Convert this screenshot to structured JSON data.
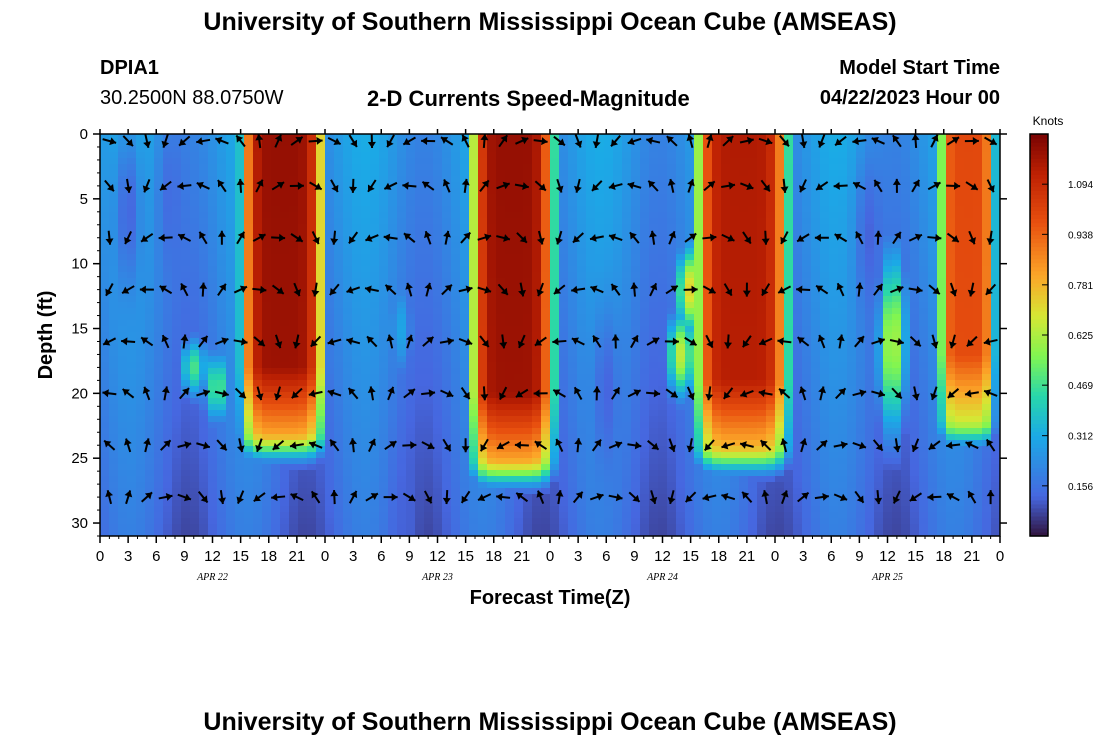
{
  "header": {
    "title": "University of Southern Mississippi Ocean Cube (AMSEAS)",
    "station_id": "DPIA1",
    "station_coords": "30.2500N  88.0750W",
    "plot_subtitle": "2-D Currents Speed-Magnitude",
    "model_start_label": "Model Start Time",
    "model_start_value": "04/22/2023 Hour 00"
  },
  "footer": {
    "title": "University of Southern Mississippi Ocean Cube (AMSEAS)"
  },
  "chart_data": {
    "type": "heatmap",
    "title": "2-D Currents Speed-Magnitude",
    "xlabel": "Forecast Time(Z)",
    "ylabel": "Depth (ft)",
    "x_tick_labels": [
      "0",
      "3",
      "6",
      "9",
      "12",
      "15",
      "18",
      "21",
      "0",
      "3",
      "6",
      "9",
      "12",
      "15",
      "18",
      "21",
      "0",
      "3",
      "6",
      "9",
      "12",
      "15",
      "18",
      "21",
      "0",
      "3",
      "6",
      "9",
      "12",
      "15",
      "18",
      "21",
      "0"
    ],
    "x_range_hours": [
      0,
      96
    ],
    "date_labels": [
      {
        "label": "APR 22",
        "hour": 12
      },
      {
        "label": "APR 23",
        "hour": 36
      },
      {
        "label": "APR 24",
        "hour": 60
      },
      {
        "label": "APR 25",
        "hour": 84
      }
    ],
    "y_tick_labels": [
      "0",
      "5",
      "10",
      "15",
      "20",
      "25",
      "30"
    ],
    "y_range_ft": [
      0,
      31
    ],
    "y_inverted": true,
    "colorbar": {
      "unit": "Knots",
      "range": [
        0.0,
        1.25
      ],
      "tick_values": [
        0.156,
        0.312,
        0.469,
        0.625,
        0.781,
        0.938,
        1.094
      ],
      "tick_labels": [
        "0.156",
        "0.312",
        "0.469",
        "0.625",
        "0.781",
        "0.938",
        "1.094"
      ]
    },
    "high_speed_cores": [
      {
        "center_hour": 19.5,
        "width_hours": 9,
        "max_depth_ft": 23,
        "peak_knots": 1.2
      },
      {
        "center_hour": 44.0,
        "width_hours": 9,
        "max_depth_ft": 25,
        "peak_knots": 1.2
      },
      {
        "center_hour": 68.5,
        "width_hours": 10,
        "max_depth_ft": 24,
        "peak_knots": 1.15
      },
      {
        "center_hour": 92.5,
        "width_hours": 6,
        "max_depth_ft": 22,
        "peak_knots": 1.0
      }
    ],
    "arrow_rows_depth_ft": [
      0,
      4,
      8,
      12,
      16,
      20,
      24,
      28
    ]
  }
}
